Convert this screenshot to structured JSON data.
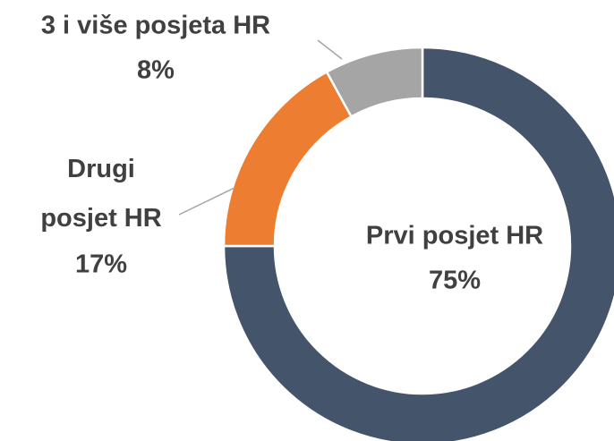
{
  "chart_data": {
    "type": "pie",
    "categories": [
      "Prvi posjet HR",
      "Drugi posjet HR",
      "3 i više posjeta HR"
    ],
    "values": [
      75,
      17,
      8
    ],
    "value_labels": [
      "75%",
      "17%",
      "8%"
    ],
    "colors": [
      "#44546a",
      "#ed7d31",
      "#a5a5a5"
    ]
  }
}
